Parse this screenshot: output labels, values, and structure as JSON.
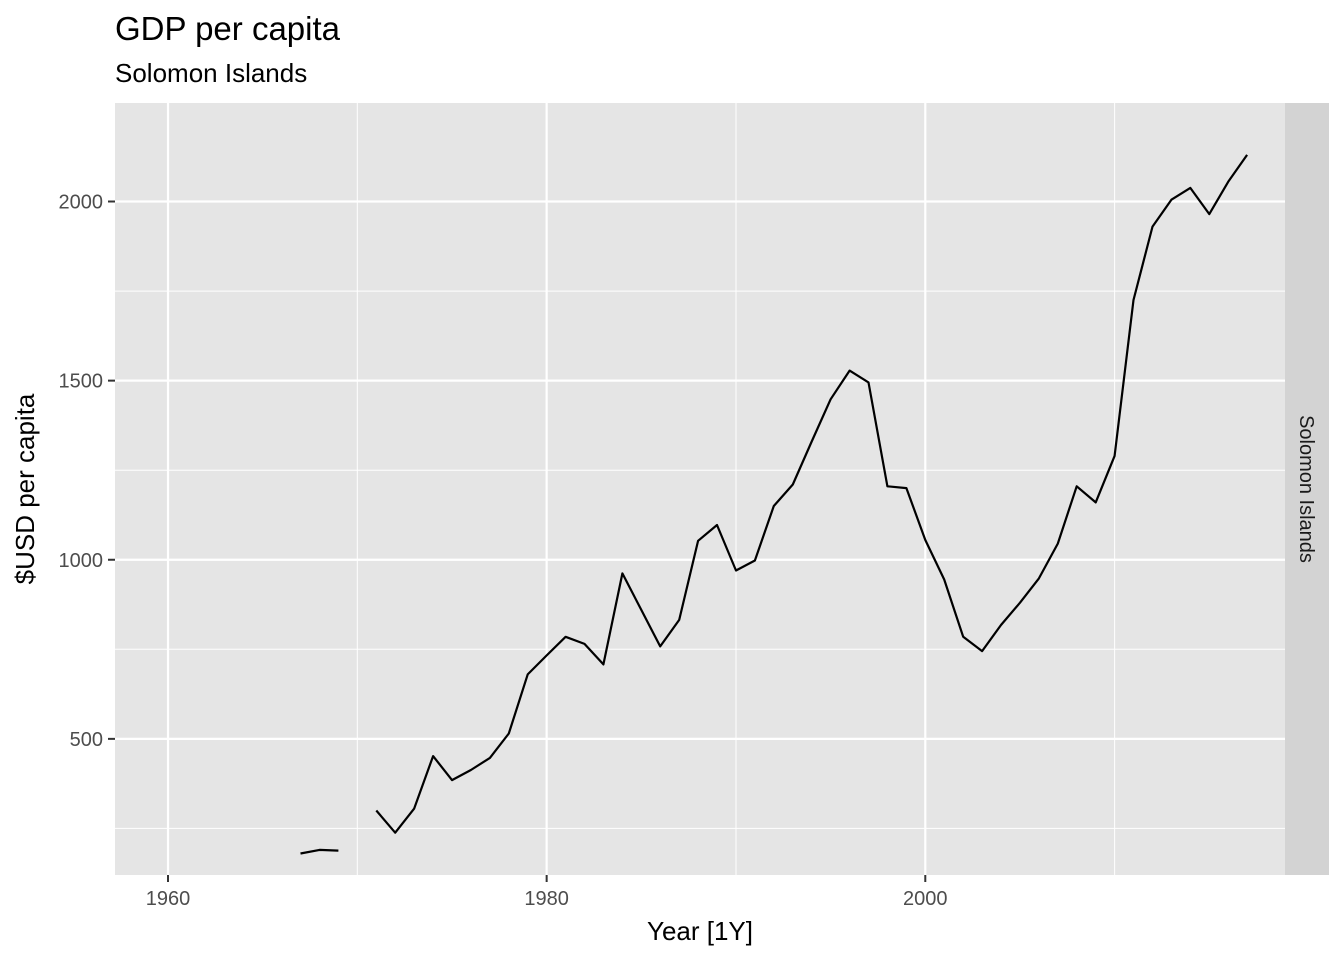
{
  "chart_data": {
    "type": "line",
    "title": "GDP per capita",
    "subtitle": "Solomon Islands",
    "xlabel": "Year [1Y]",
    "ylabel": "$USD per capita",
    "facet_label": "Solomon Islands",
    "xlim": [
      1957.2,
      2019
    ],
    "ylim": [
      120,
      2275
    ],
    "x_ticks": [
      1960,
      1980,
      2000
    ],
    "x_tick_labels": [
      "1960",
      "1980",
      "2000"
    ],
    "x_minor_ticks": [
      1970,
      1990,
      2010
    ],
    "y_ticks": [
      500,
      1000,
      1500,
      2000
    ],
    "y_tick_labels": [
      "500",
      "1000",
      "1500",
      "2000"
    ],
    "y_minor_ticks": [
      250,
      750,
      1250,
      1750
    ],
    "grid": true,
    "colors": {
      "panel": "#e5e5e5",
      "grid": "#ffffff",
      "strip": "#d3d3d3",
      "line": "#000000"
    },
    "series": [
      {
        "x": [
          1967,
          1968,
          1969,
          1970,
          1971,
          1972,
          1973,
          1974,
          1975,
          1976,
          1977,
          1978,
          1979,
          1980,
          1981,
          1982,
          1983,
          1984,
          1985,
          1986,
          1987,
          1988,
          1989,
          1990,
          1991,
          1992,
          1993,
          1994,
          1995,
          1996,
          1997,
          1998,
          1999,
          2000,
          2001,
          2002,
          2003,
          2004,
          2005,
          2006,
          2007,
          2008,
          2009,
          2010,
          2011,
          2012,
          2013,
          2014,
          2015,
          2016,
          2017
        ],
        "values": [
          180,
          190,
          188,
          null,
          300,
          238,
          305,
          452,
          385,
          413,
          447,
          515,
          680,
          733,
          785,
          765,
          708,
          962,
          860,
          758,
          832,
          1053,
          1097,
          970,
          998,
          1150,
          1210,
          1330,
          1448,
          1528,
          1495,
          1205,
          1200,
          1055,
          945,
          785,
          745,
          818,
          880,
          948,
          1045,
          1205,
          1160,
          1290,
          1725,
          1930,
          2005,
          2038,
          1965,
          2055,
          2130
        ]
      }
    ]
  }
}
